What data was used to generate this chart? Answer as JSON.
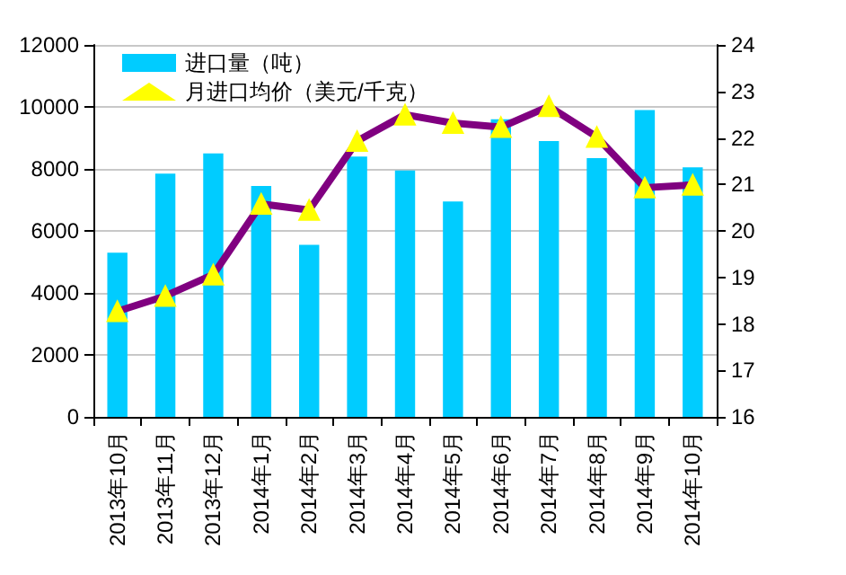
{
  "chart_data": {
    "type": "bar",
    "categories": [
      "2013年10月",
      "2013年11月",
      "2013年12月",
      "2014年1月",
      "2014年2月",
      "2014年3月",
      "2014年4月",
      "2014年5月",
      "2014年6月",
      "2014年7月",
      "2014年8月",
      "2014年9月",
      "2014年10月"
    ],
    "series": [
      {
        "name": "进口量（吨）",
        "color": "#00ccff",
        "values": [
          5300,
          7850,
          8500,
          7450,
          5550,
          8400,
          7950,
          6950,
          9600,
          8900,
          8350,
          9900,
          8050
        ]
      },
      {
        "name": "月进口均价（美元/千克）",
        "type": "line",
        "axis": "y2",
        "color": "#800080",
        "marker": "triangle",
        "values": [
          18.27,
          18.6,
          19.06,
          20.58,
          20.45,
          21.93,
          22.5,
          22.32,
          22.23,
          22.68,
          22.02,
          20.93,
          20.99
        ]
      }
    ],
    "ylim": [
      0,
      12000
    ],
    "yticks": [
      0,
      2000,
      4000,
      6000,
      8000,
      10000,
      12000
    ],
    "y2lim": [
      16,
      24
    ],
    "y2ticks": [
      16,
      17,
      18,
      19,
      20,
      21,
      22,
      23,
      24
    ],
    "grid": "y",
    "legend": "top left"
  }
}
